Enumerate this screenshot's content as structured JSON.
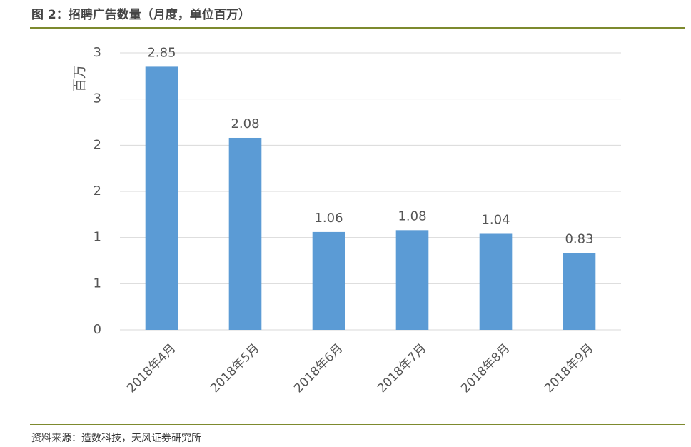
{
  "figure": {
    "title": "图 2：招聘广告数量（月度，单位百万）",
    "source": "资料来源：造数科技，天风证券研究所"
  },
  "chart_data": {
    "type": "bar",
    "ylabel": "百万",
    "categories": [
      "2018年4月",
      "2018年5月",
      "2018年6月",
      "2018年7月",
      "2018年8月",
      "2018年9月"
    ],
    "values": [
      2.85,
      2.08,
      1.06,
      1.08,
      1.04,
      0.83
    ],
    "data_labels": [
      "2.85",
      "2.08",
      "1.06",
      "1.08",
      "1.04",
      "0.83"
    ],
    "yticks": [
      0,
      0.5,
      1,
      1.5,
      2,
      2.5,
      3
    ],
    "ytick_labels": [
      "0",
      "1",
      "1",
      "2",
      "2",
      "3",
      "3"
    ],
    "ylim": [
      0,
      3
    ],
    "grid": true,
    "bar_color": "#5b9bd5"
  }
}
